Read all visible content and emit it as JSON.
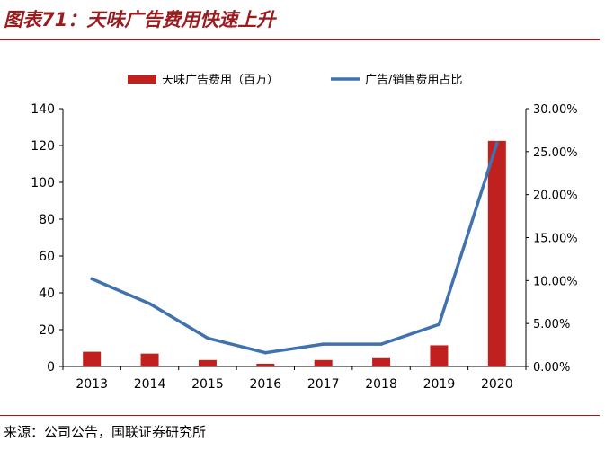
{
  "header": {
    "title": "图表71：天味广告费用快速上升"
  },
  "footer": {
    "source": "来源：公司公告，国联证券研究所"
  },
  "chart_data": {
    "type": "bar",
    "categories": [
      "2013",
      "2014",
      "2015",
      "2016",
      "2017",
      "2018",
      "2019",
      "2020"
    ],
    "series": [
      {
        "name": "天味广告费用（百万）",
        "type": "bar",
        "axis": "left",
        "color": "#c0211f",
        "values": [
          8,
          7,
          3.5,
          1.5,
          3.5,
          4.5,
          11.5,
          122.5
        ]
      },
      {
        "name": "广告/销售费用占比",
        "type": "line",
        "axis": "right",
        "color": "#3f72af",
        "values": [
          10.2,
          7.3,
          3.3,
          1.6,
          2.6,
          2.6,
          4.9,
          26.0
        ]
      }
    ],
    "y_left": {
      "ylim": [
        0,
        140
      ],
      "ticks": [
        "0",
        "20",
        "40",
        "60",
        "80",
        "100",
        "120",
        "140"
      ]
    },
    "y_right": {
      "ylim": [
        0,
        30
      ],
      "ticks": [
        "0.00%",
        "5.00%",
        "10.00%",
        "15.00%",
        "20.00%",
        "25.00%",
        "30.00%"
      ]
    },
    "legend": "top",
    "grid": false
  }
}
